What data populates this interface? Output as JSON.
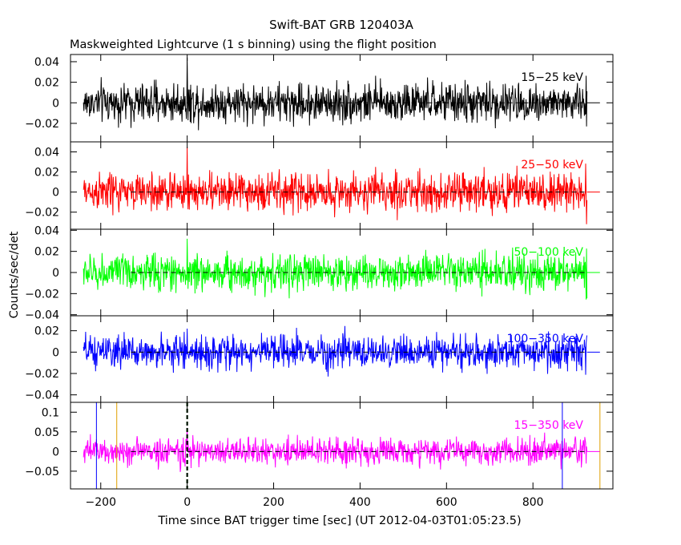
{
  "title": "Swift-BAT GRB 120403A",
  "subtitle": "Maskweighted Lightcurve (1 s binning) using the flight position",
  "xlabel": "Time since BAT trigger time [sec] (UT 2012-04-03T01:05:23.5)",
  "ylabel": "Counts/sec/det",
  "chart_data": {
    "type": "line",
    "x_range": [
      -270,
      985
    ],
    "x_ticks": [
      -200,
      0,
      200,
      400,
      600,
      800
    ],
    "x_tick_labels": [
      "−200",
      "0",
      "200",
      "400",
      "600",
      "800"
    ],
    "data_start": -240,
    "data_end": 925,
    "dash_start": -130,
    "flat_end": 955,
    "panels": [
      {
        "label": "15−25 keV",
        "color": "#000000",
        "ylim": [
          -0.038,
          0.047
        ],
        "ticks": [
          -0.02,
          0,
          0.02,
          0.04
        ],
        "tick_labels": [
          "−0.02",
          "0",
          "0.02",
          "0.04"
        ],
        "noise": 0.0095,
        "spike": 0.044
      },
      {
        "label": "25−50 keV",
        "color": "#ff0000",
        "ylim": [
          -0.037,
          0.05
        ],
        "ticks": [
          -0.02,
          0,
          0.02,
          0.04
        ],
        "tick_labels": [
          "−0.02",
          "0",
          "0.02",
          "0.04"
        ],
        "noise": 0.0095,
        "spike": 0.045
      },
      {
        "label": "50−100 keV",
        "color": "#00ff00",
        "ylim": [
          -0.041,
          0.041
        ],
        "ticks": [
          -0.04,
          -0.02,
          0,
          0.02,
          0.04
        ],
        "tick_labels": [
          "−0.04",
          "−0.02",
          "0",
          "0.02",
          "0.04"
        ],
        "noise": 0.0085,
        "spike": 0.032
      },
      {
        "label": "100−350 keV",
        "color": "#0000ff",
        "ylim": [
          -0.047,
          0.034
        ],
        "ticks": [
          -0.04,
          -0.02,
          0,
          0.02
        ],
        "tick_labels": [
          "−0.04",
          "−0.02",
          "0",
          "0.02"
        ],
        "noise": 0.0075,
        "spike": 0.022
      },
      {
        "label": "15−350 keV",
        "color": "#ff00ff",
        "ylim": [
          -0.095,
          0.125
        ],
        "ticks": [
          -0.05,
          0,
          0.05,
          0.1
        ],
        "tick_labels": [
          "−0.05",
          "0",
          "0.05",
          "0.1"
        ],
        "noise": 0.017,
        "spike": 0.06
      }
    ],
    "markers": [
      {
        "x": -210,
        "color": "#0000ff"
      },
      {
        "x": -163,
        "color": "#e0a000"
      },
      {
        "x": 0,
        "color": "#00cc00"
      },
      {
        "x": 0,
        "color": "#000000"
      },
      {
        "x": 868,
        "color": "#0000ff"
      },
      {
        "x": 955,
        "color": "#e0a000"
      }
    ]
  }
}
